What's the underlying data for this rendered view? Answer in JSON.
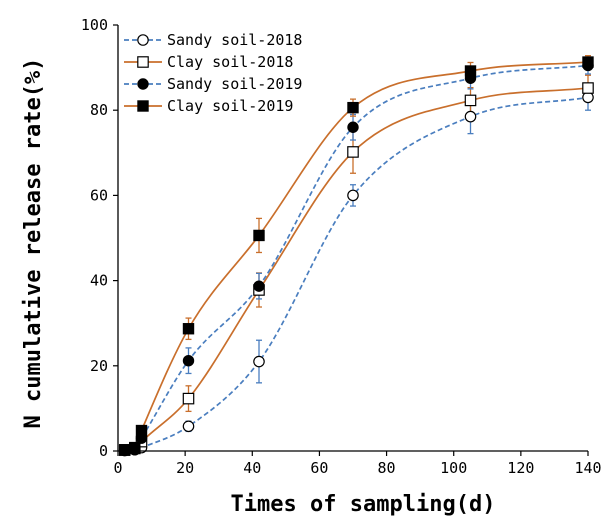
{
  "chart_data": {
    "type": "line",
    "title": "",
    "xlabel": "Times of sampling(d)",
    "ylabel": "N cumulative release rate(%)",
    "xlim": [
      0,
      140
    ],
    "ylim": [
      0,
      100
    ],
    "xticks": [
      0,
      20,
      40,
      60,
      80,
      100,
      120,
      140
    ],
    "yticks": [
      0,
      20,
      40,
      60,
      80,
      100
    ],
    "x": [
      2,
      5,
      7,
      21,
      42,
      70,
      105,
      140
    ],
    "legend_position": "top-left",
    "series": [
      {
        "name": "Sandy soil-2018",
        "marker": "open-circle",
        "line_style": "dashed",
        "line_color": "#4a7ebf",
        "values": [
          0.1,
          0.3,
          0.8,
          5.8,
          21,
          60,
          78.5,
          83
        ],
        "errors": [
          0.3,
          0.3,
          0.4,
          1.2,
          5,
          2.5,
          4,
          3
        ]
      },
      {
        "name": "Clay soil-2018",
        "marker": "open-square",
        "line_style": "solid",
        "line_color": "#c96f2c",
        "values": [
          0.2,
          0.6,
          2.2,
          12.3,
          37.8,
          70.2,
          82.3,
          85.2
        ],
        "errors": [
          0.3,
          0.3,
          0.6,
          3,
          4,
          5,
          3,
          3
        ]
      },
      {
        "name": "Sandy soil-2019",
        "marker": "filled-circle",
        "line_style": "dashed",
        "line_color": "#4a7ebf",
        "values": [
          0.2,
          0.5,
          3,
          21.2,
          38.7,
          76,
          87.5,
          90.5
        ],
        "errors": [
          0.3,
          0.3,
          0.6,
          3,
          3,
          3,
          2.5,
          2
        ]
      },
      {
        "name": "Clay soil-2019",
        "marker": "filled-square",
        "line_style": "solid",
        "line_color": "#c96f2c",
        "values": [
          0.3,
          0.8,
          4.8,
          28.7,
          50.6,
          80.6,
          89.2,
          91.3
        ],
        "errors": [
          0.3,
          0.4,
          0.8,
          2.5,
          4,
          2,
          2,
          1.5
        ]
      }
    ],
    "colors": {
      "error_blue": "#4a7ebf",
      "error_orange": "#c96f2c",
      "axis": "#000000"
    }
  }
}
